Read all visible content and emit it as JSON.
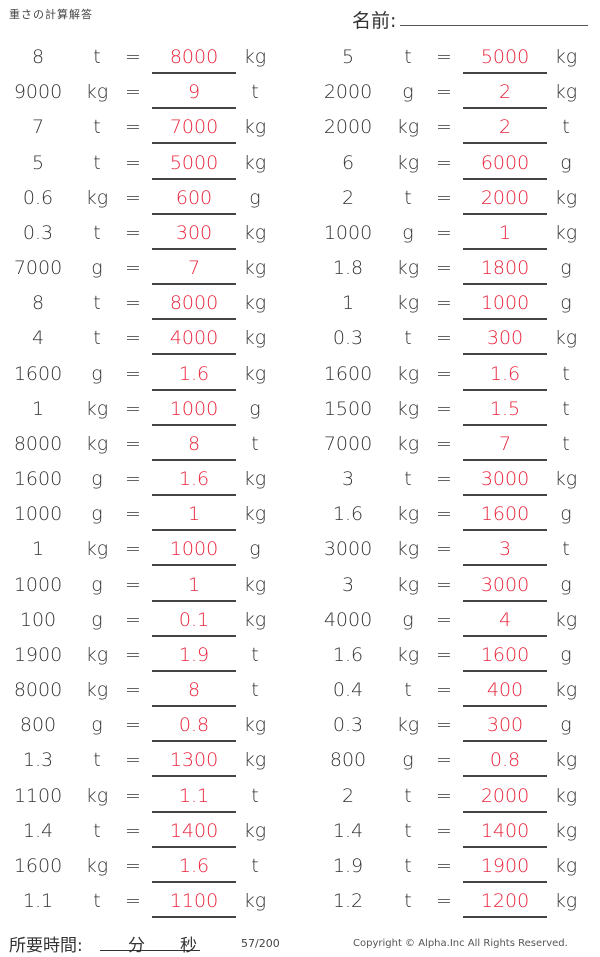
{
  "header": {
    "title": "重さの計算解答",
    "name_label": "名前:"
  },
  "colors": {
    "answer": "#e8243c",
    "text": "#333333"
  },
  "equals": "=",
  "left": [
    [
      "8",
      "t",
      "8000",
      "kg"
    ],
    [
      "9000",
      "kg",
      "9",
      "t"
    ],
    [
      "7",
      "t",
      "7000",
      "kg"
    ],
    [
      "5",
      "t",
      "5000",
      "kg"
    ],
    [
      "0.6",
      "kg",
      "600",
      "g"
    ],
    [
      "0.3",
      "t",
      "300",
      "kg"
    ],
    [
      "7000",
      "g",
      "7",
      "kg"
    ],
    [
      "8",
      "t",
      "8000",
      "kg"
    ],
    [
      "4",
      "t",
      "4000",
      "kg"
    ],
    [
      "1600",
      "g",
      "1.6",
      "kg"
    ],
    [
      "1",
      "kg",
      "1000",
      "g"
    ],
    [
      "8000",
      "kg",
      "8",
      "t"
    ],
    [
      "1600",
      "g",
      "1.6",
      "kg"
    ],
    [
      "1000",
      "g",
      "1",
      "kg"
    ],
    [
      "1",
      "kg",
      "1000",
      "g"
    ],
    [
      "1000",
      "g",
      "1",
      "kg"
    ],
    [
      "100",
      "g",
      "0.1",
      "kg"
    ],
    [
      "1900",
      "kg",
      "1.9",
      "t"
    ],
    [
      "8000",
      "kg",
      "8",
      "t"
    ],
    [
      "800",
      "g",
      "0.8",
      "kg"
    ],
    [
      "1.3",
      "t",
      "1300",
      "kg"
    ],
    [
      "1100",
      "kg",
      "1.1",
      "t"
    ],
    [
      "1.4",
      "t",
      "1400",
      "kg"
    ],
    [
      "1600",
      "kg",
      "1.6",
      "t"
    ],
    [
      "1.1",
      "t",
      "1100",
      "kg"
    ]
  ],
  "right": [
    [
      "5",
      "t",
      "5000",
      "kg"
    ],
    [
      "2000",
      "g",
      "2",
      "kg"
    ],
    [
      "2000",
      "kg",
      "2",
      "t"
    ],
    [
      "6",
      "kg",
      "6000",
      "g"
    ],
    [
      "2",
      "t",
      "2000",
      "kg"
    ],
    [
      "1000",
      "g",
      "1",
      "kg"
    ],
    [
      "1.8",
      "kg",
      "1800",
      "g"
    ],
    [
      "1",
      "kg",
      "1000",
      "g"
    ],
    [
      "0.3",
      "t",
      "300",
      "kg"
    ],
    [
      "1600",
      "kg",
      "1.6",
      "t"
    ],
    [
      "1500",
      "kg",
      "1.5",
      "t"
    ],
    [
      "7000",
      "kg",
      "7",
      "t"
    ],
    [
      "3",
      "t",
      "3000",
      "kg"
    ],
    [
      "1.6",
      "kg",
      "1600",
      "g"
    ],
    [
      "3000",
      "kg",
      "3",
      "t"
    ],
    [
      "3",
      "kg",
      "3000",
      "g"
    ],
    [
      "4000",
      "g",
      "4",
      "kg"
    ],
    [
      "1.6",
      "kg",
      "1600",
      "g"
    ],
    [
      "0.4",
      "t",
      "400",
      "kg"
    ],
    [
      "0.3",
      "kg",
      "300",
      "g"
    ],
    [
      "800",
      "g",
      "0.8",
      "kg"
    ],
    [
      "2",
      "t",
      "2000",
      "kg"
    ],
    [
      "1.4",
      "t",
      "1400",
      "kg"
    ],
    [
      "1.9",
      "t",
      "1900",
      "kg"
    ],
    [
      "1.2",
      "t",
      "1200",
      "kg"
    ]
  ],
  "footer": {
    "time_label": "所要時間:",
    "minutes": "分",
    "seconds": "秒",
    "page": "57/200",
    "copyright": "Copyright © Alpha.Inc All Rights Reserved."
  }
}
